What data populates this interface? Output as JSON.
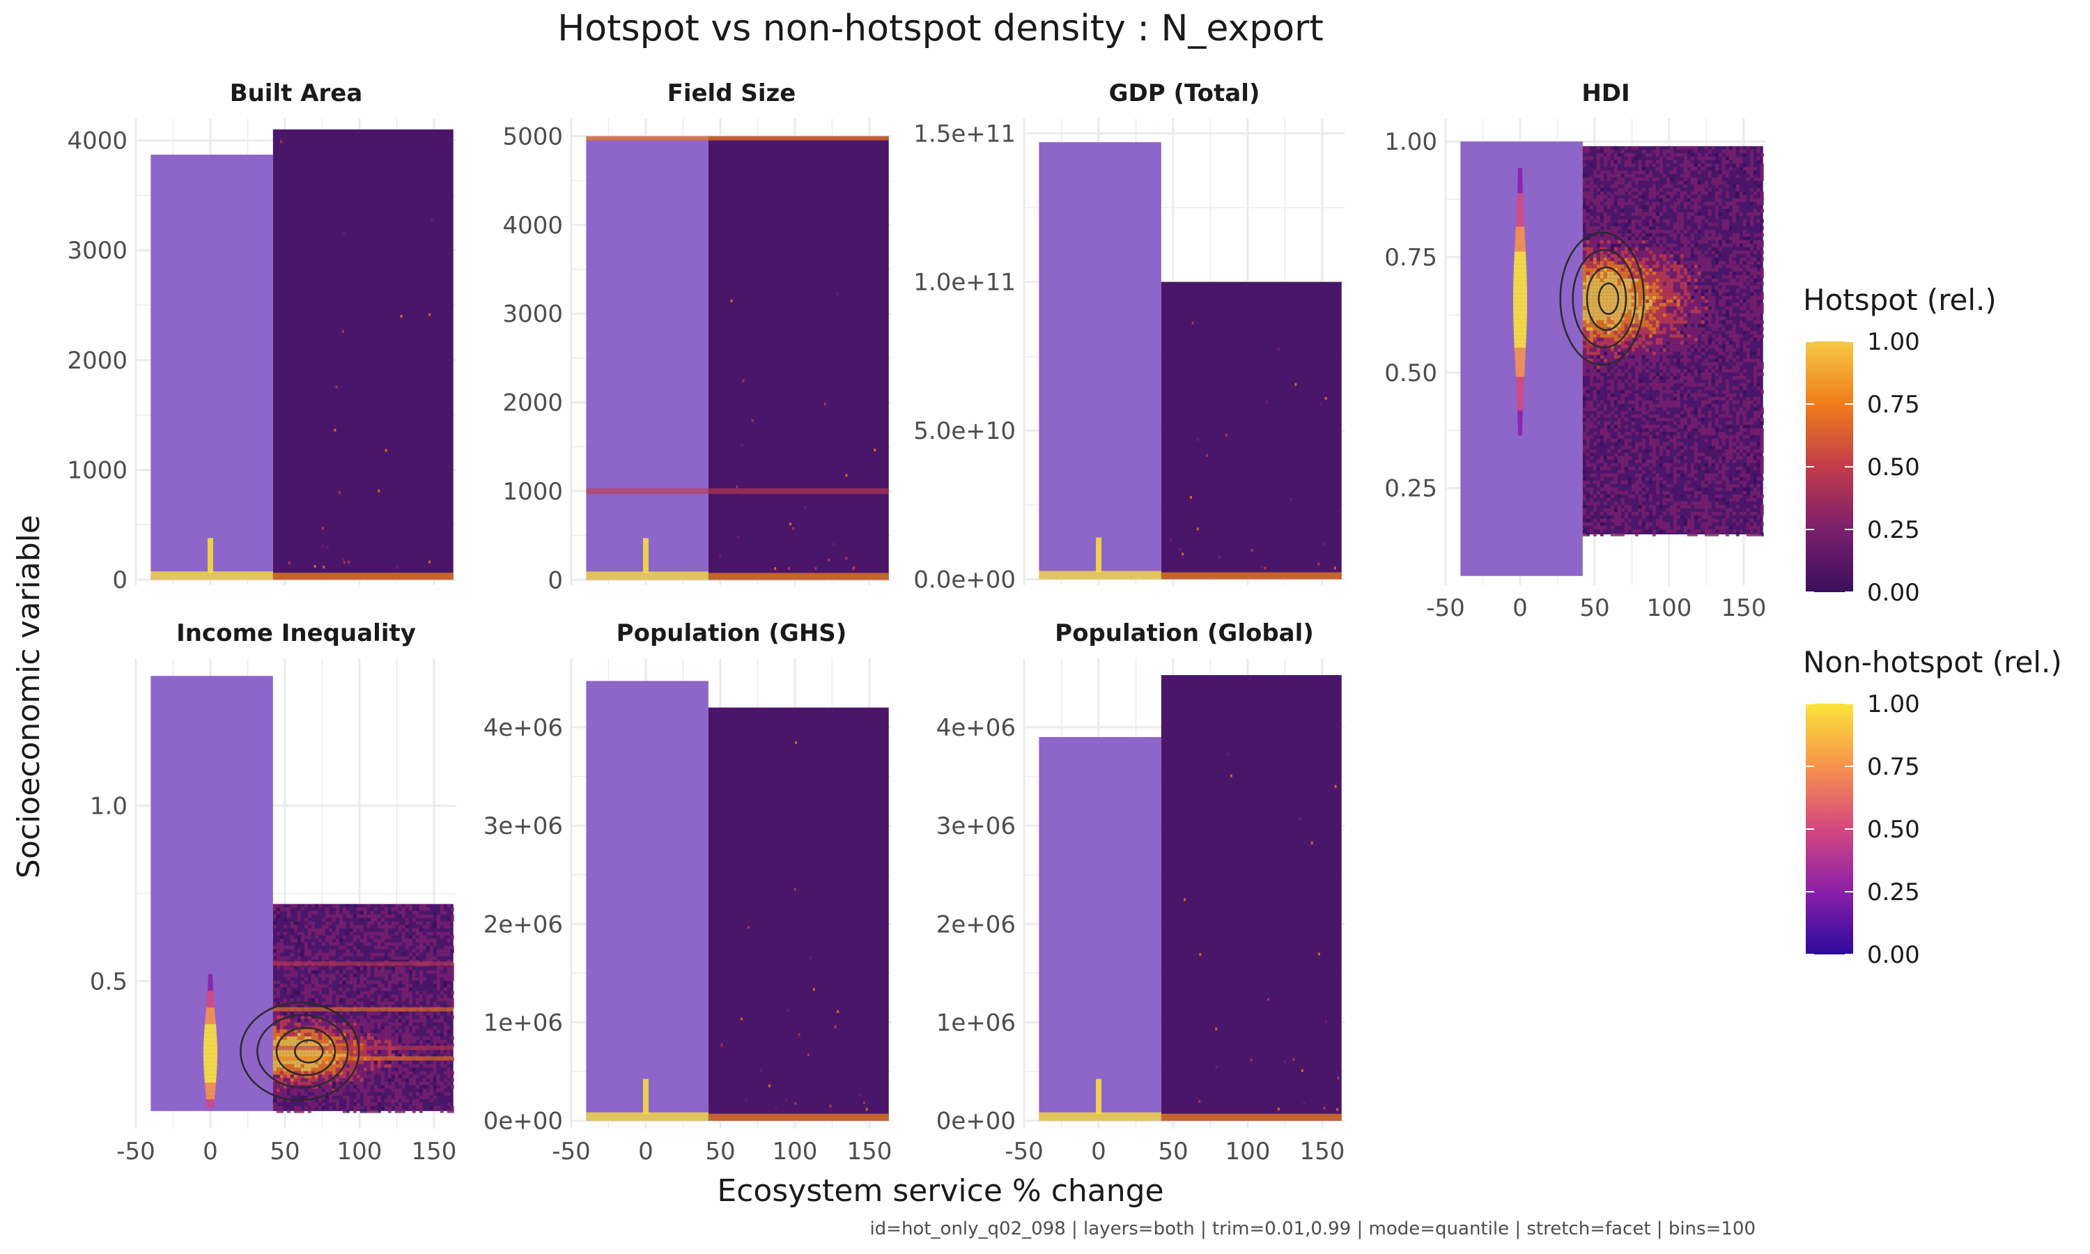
{
  "title": "Hotspot vs non-hotspot density : N_export",
  "xlabel": "Ecosystem service % change",
  "ylabel": "Socioeconomic variable",
  "caption": "id=hot_only_q02_098 | layers=both | trim=0.01,0.99 | mode=quantile | stretch=facet | bins=100",
  "colors": {
    "nonhot_block": "#8e65c9",
    "hot_block": "#4a166a",
    "grid": "#ebebeb",
    "contour": "#2a2a2a"
  },
  "legends": [
    {
      "title": "Hotspot (rel.)",
      "palette": [
        "#3a0f5c",
        "#7a1f6d",
        "#c23c4b",
        "#ef7d1a",
        "#f7c944"
      ],
      "ticks": [
        "1.00",
        "0.75",
        "0.50",
        "0.25",
        "0.00"
      ]
    },
    {
      "title": "Non-hotspot (rel.)",
      "palette": [
        "#2c0a9c",
        "#8a20a8",
        "#d4487f",
        "#f7934b",
        "#fce43a"
      ],
      "ticks": [
        "1.00",
        "0.75",
        "0.50",
        "0.25",
        "0.00"
      ]
    }
  ],
  "chart_data": [
    {
      "type": "heatmap",
      "panel": "Built Area",
      "xlim": [
        -50,
        165
      ],
      "ylim": [
        -50,
        4200
      ],
      "x_ticks": [
        -50,
        0,
        50,
        100,
        150
      ],
      "y_ticks": [
        0,
        1000,
        2000,
        3000,
        4000
      ],
      "x_tick_labels": [
        "-50",
        "0",
        "50",
        "100",
        "150"
      ],
      "y_tick_labels": [
        "0",
        "1000",
        "2000",
        "3000",
        "4000"
      ],
      "nonhotspot_range": {
        "x": [
          -40,
          42
        ],
        "y": [
          0,
          3870
        ]
      },
      "hotspot_range": {
        "x": [
          42,
          163
        ],
        "y": [
          0,
          4100
        ]
      },
      "contours": false
    },
    {
      "type": "heatmap",
      "panel": "Field Size",
      "xlim": [
        -50,
        165
      ],
      "ylim": [
        -60,
        5200
      ],
      "x_ticks": [
        -50,
        0,
        50,
        100,
        150
      ],
      "y_ticks": [
        0,
        1000,
        2000,
        3000,
        4000,
        5000
      ],
      "x_tick_labels": [
        "-50",
        "0",
        "50",
        "100",
        "150"
      ],
      "y_tick_labels": [
        "0",
        "1000",
        "2000",
        "3000",
        "4000",
        "5000"
      ],
      "nonhotspot_range": {
        "x": [
          -40,
          42
        ],
        "y": [
          0,
          5000
        ]
      },
      "hotspot_range": {
        "x": [
          42,
          163
        ],
        "y": [
          0,
          5000
        ]
      },
      "contours": false
    },
    {
      "type": "heatmap",
      "panel": "GDP (Total)",
      "xlim": [
        -50,
        165
      ],
      "ylim": [
        -2000000000.0,
        155000000000.0
      ],
      "x_ticks": [
        -50,
        0,
        50,
        100,
        150
      ],
      "y_ticks": [
        0,
        50000000000.0,
        100000000000.0,
        150000000000.0
      ],
      "x_tick_labels": [
        "-50",
        "0",
        "50",
        "100",
        "150"
      ],
      "y_tick_labels": [
        "0.0e+00",
        "5.0e+10",
        "1.0e+11",
        "1.5e+11"
      ],
      "nonhotspot_range": {
        "x": [
          -40,
          42
        ],
        "y": [
          0,
          147000000000.0
        ]
      },
      "hotspot_range": {
        "x": [
          42,
          163
        ],
        "y": [
          0,
          100000000000.0
        ]
      },
      "contours": false
    },
    {
      "type": "heatmap",
      "panel": "HDI",
      "xlim": [
        -50,
        165
      ],
      "ylim": [
        0.04,
        1.05
      ],
      "x_ticks": [
        -50,
        0,
        50,
        100,
        150
      ],
      "y_ticks": [
        0.25,
        0.5,
        0.75,
        1.0
      ],
      "x_tick_labels": [
        "-50",
        "0",
        "50",
        "100",
        "150"
      ],
      "y_tick_labels": [
        "0.25",
        "0.50",
        "0.75",
        "1.00"
      ],
      "nonhotspot_range": {
        "x": [
          -40,
          42
        ],
        "y": [
          0.06,
          1.0
        ]
      },
      "hotspot_range": {
        "x": [
          42,
          163
        ],
        "y": [
          0.15,
          0.99
        ]
      },
      "contours": true
    },
    {
      "type": "heatmap",
      "panel": "Income Inequality",
      "xlim": [
        -50,
        165
      ],
      "ylim": [
        0.08,
        1.42
      ],
      "x_ticks": [
        -50,
        0,
        50,
        100,
        150
      ],
      "y_ticks": [
        0.5,
        1.0
      ],
      "x_tick_labels": [
        "-50",
        "0",
        "50",
        "100",
        "150"
      ],
      "y_tick_labels": [
        "0.5",
        "1.0"
      ],
      "nonhotspot_range": {
        "x": [
          -40,
          42
        ],
        "y": [
          0.13,
          1.37
        ]
      },
      "hotspot_range": {
        "x": [
          42,
          163
        ],
        "y": [
          0.13,
          0.72
        ]
      },
      "contours": true
    },
    {
      "type": "heatmap",
      "panel": "Population (GHS)",
      "xlim": [
        -50,
        165
      ],
      "ylim": [
        -80000.0,
        4700000.0
      ],
      "x_ticks": [
        -50,
        0,
        50,
        100,
        150
      ],
      "y_ticks": [
        0,
        1000000.0,
        2000000.0,
        3000000.0,
        4000000.0
      ],
      "x_tick_labels": [
        "-50",
        "0",
        "50",
        "100",
        "150"
      ],
      "y_tick_labels": [
        "0e+00",
        "1e+06",
        "2e+06",
        "3e+06",
        "4e+06"
      ],
      "nonhotspot_range": {
        "x": [
          -40,
          42
        ],
        "y": [
          0,
          4470000.0
        ]
      },
      "hotspot_range": {
        "x": [
          42,
          163
        ],
        "y": [
          0,
          4200000.0
        ]
      },
      "contours": false
    },
    {
      "type": "heatmap",
      "panel": "Population (Global)",
      "xlim": [
        -50,
        165
      ],
      "ylim": [
        -80000.0,
        4700000.0
      ],
      "x_ticks": [
        -50,
        0,
        50,
        100,
        150
      ],
      "y_ticks": [
        0,
        1000000.0,
        2000000.0,
        3000000.0,
        4000000.0
      ],
      "x_tick_labels": [
        "-50",
        "0",
        "50",
        "100",
        "150"
      ],
      "y_tick_labels": [
        "0e+00",
        "1e+06",
        "2e+06",
        "3e+06",
        "4e+06"
      ],
      "nonhotspot_range": {
        "x": [
          -40,
          42
        ],
        "y": [
          0,
          3900000.0
        ]
      },
      "hotspot_range": {
        "x": [
          42,
          163
        ],
        "y": [
          0,
          4530000.0
        ]
      },
      "contours": false
    }
  ]
}
